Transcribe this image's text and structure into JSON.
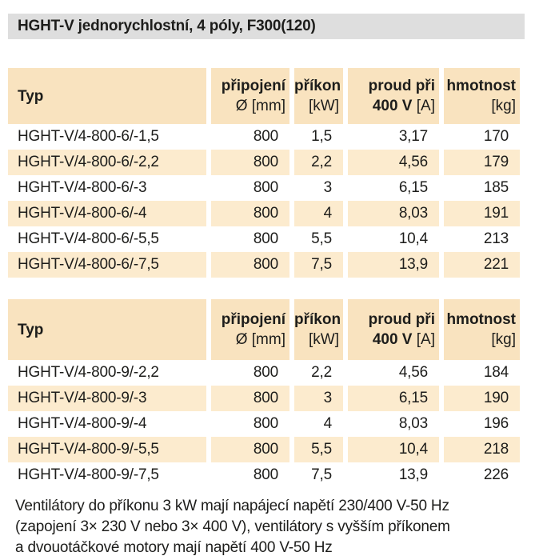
{
  "title": "HGHT-V jednorychlostní, 4 póly, F300(120)",
  "colors": {
    "title_bar_bg": "#dedede",
    "table_header_bg": "#f9e3bf",
    "row_stripe_bg": "#fcebce",
    "text": "#1d1d1b"
  },
  "columns": {
    "typ": {
      "label": "Typ"
    },
    "pripojeni": {
      "line1": "připojení",
      "line2": "Ø [mm]"
    },
    "prikon": {
      "line1": "příkon",
      "line2": "[kW]"
    },
    "proud": {
      "line1": "proud při",
      "line2_bold": "400 V",
      "line2_unit": " [A]"
    },
    "hmotnost": {
      "line1": "hmotnost",
      "line2": "[kg]"
    }
  },
  "tables": [
    {
      "rows": [
        {
          "typ": "HGHT-V/4-800-6/-1,5",
          "d": "800",
          "kw": "1,5",
          "a": "3,17",
          "kg": "170"
        },
        {
          "typ": "HGHT-V/4-800-6/-2,2",
          "d": "800",
          "kw": "2,2",
          "a": "4,56",
          "kg": "179"
        },
        {
          "typ": "HGHT-V/4-800-6/-3",
          "d": "800",
          "kw": "3",
          "a": "6,15",
          "kg": "185"
        },
        {
          "typ": "HGHT-V/4-800-6/-4",
          "d": "800",
          "kw": "4",
          "a": "8,03",
          "kg": "191"
        },
        {
          "typ": "HGHT-V/4-800-6/-5,5",
          "d": "800",
          "kw": "5,5",
          "a": "10,4",
          "kg": "213"
        },
        {
          "typ": "HGHT-V/4-800-6/-7,5",
          "d": "800",
          "kw": "7,5",
          "a": "13,9",
          "kg": "221"
        }
      ]
    },
    {
      "rows": [
        {
          "typ": "HGHT-V/4-800-9/-2,2",
          "d": "800",
          "kw": "2,2",
          "a": "4,56",
          "kg": "184"
        },
        {
          "typ": "HGHT-V/4-800-9/-3",
          "d": "800",
          "kw": "3",
          "a": "6,15",
          "kg": "190"
        },
        {
          "typ": "HGHT-V/4-800-9/-4",
          "d": "800",
          "kw": "4",
          "a": "8,03",
          "kg": "196"
        },
        {
          "typ": "HGHT-V/4-800-9/-5,5",
          "d": "800",
          "kw": "5,5",
          "a": "10,4",
          "kg": "218"
        },
        {
          "typ": "HGHT-V/4-800-9/-7,5",
          "d": "800",
          "kw": "7,5",
          "a": "13,9",
          "kg": "226"
        }
      ]
    }
  ],
  "footnote": [
    "Ventilátory do příkonu 3 kW mají napájecí napětí 230/400 V-50 Hz",
    "(zapojení 3× 230 V nebo 3× 400 V), ventilátory s vyšším příkonem",
    "a dvouotáčkové motory mají napětí 400 V-50 Hz"
  ]
}
